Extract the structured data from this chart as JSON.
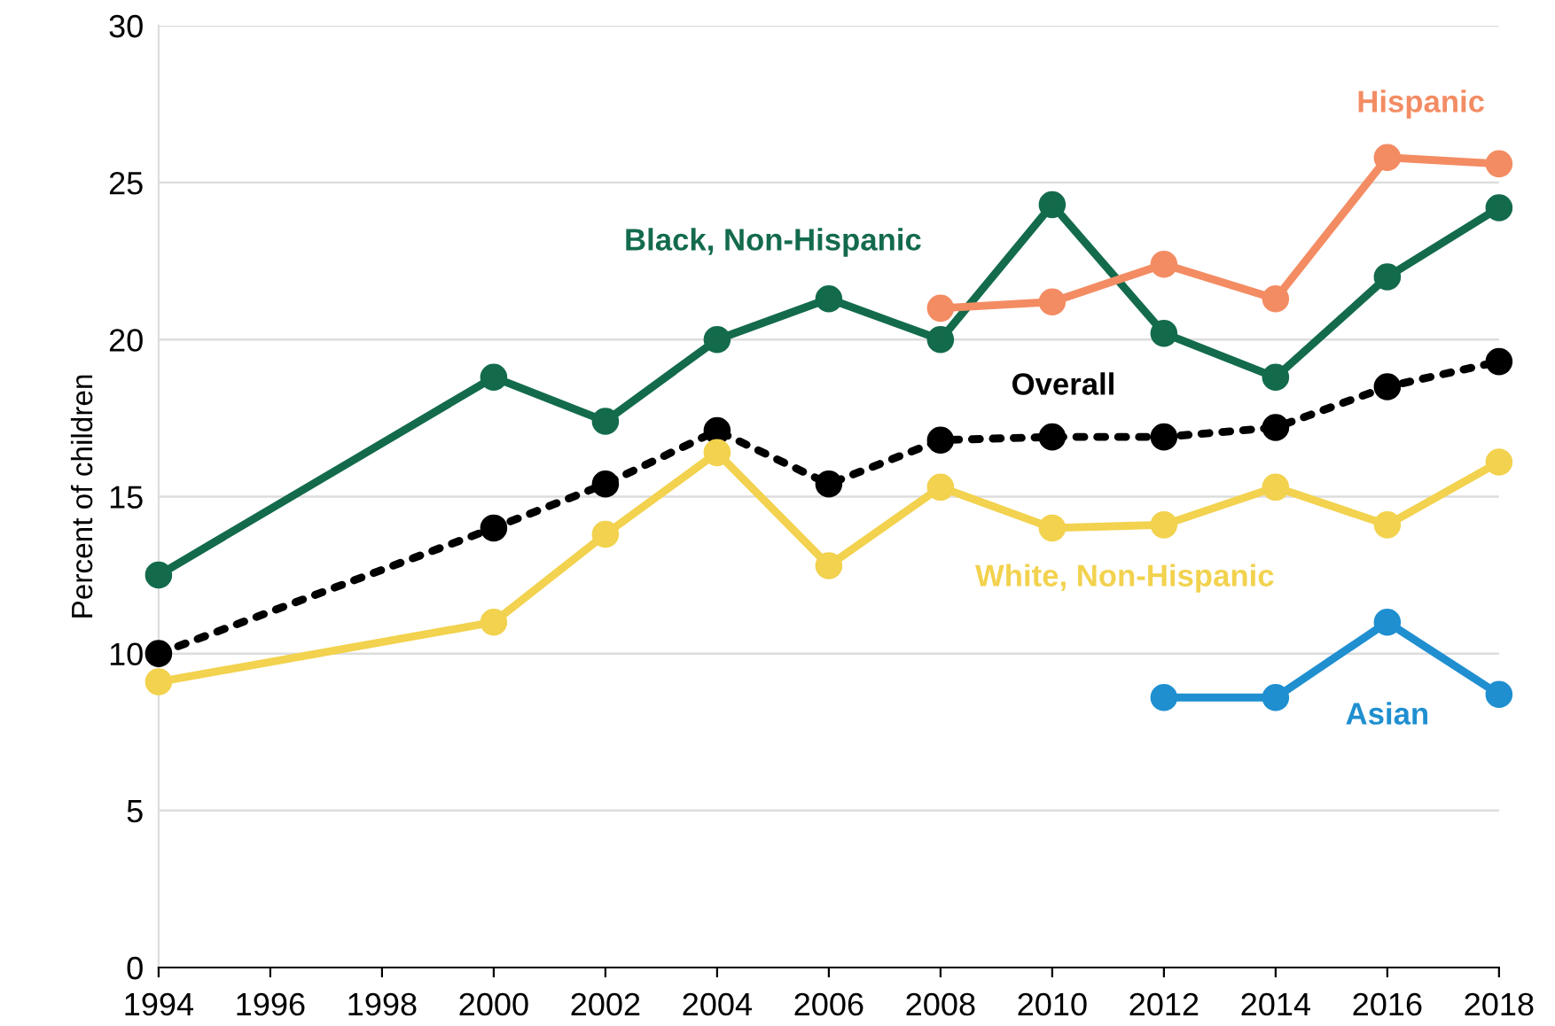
{
  "chart_data": {
    "type": "line",
    "ylabel": "Percent of children",
    "x": [
      1994,
      2000,
      2002,
      2004,
      2006,
      2008,
      2010,
      2012,
      2014,
      2016,
      2018
    ],
    "series": [
      {
        "name": "Black, Non-Hispanic",
        "color": "#136b4c",
        "values": [
          12.5,
          18.8,
          17.4,
          20.0,
          21.3,
          20.0,
          24.3,
          20.2,
          18.8,
          22.0,
          24.2
        ]
      },
      {
        "name": "Hispanic",
        "color": "#f38c63",
        "values": [
          null,
          null,
          null,
          null,
          null,
          21.0,
          21.2,
          22.4,
          21.3,
          25.8,
          25.6
        ]
      },
      {
        "name": "Overall",
        "color": "#000000",
        "line_style": "dotted",
        "values": [
          10.0,
          14.0,
          15.4,
          17.1,
          15.4,
          16.8,
          16.9,
          16.9,
          17.2,
          18.5,
          19.3
        ]
      },
      {
        "name": "White, Non-Hispanic",
        "color": "#f2d24e",
        "values": [
          9.1,
          11.0,
          13.8,
          16.4,
          12.8,
          15.3,
          14.0,
          14.1,
          15.3,
          14.1,
          16.1
        ]
      },
      {
        "name": "Asian",
        "color": "#1f8fd0",
        "values": [
          null,
          null,
          null,
          null,
          null,
          null,
          null,
          8.6,
          8.6,
          11.0,
          8.7
        ]
      }
    ],
    "xlim": [
      1994,
      2018
    ],
    "xticks": [
      1994,
      1996,
      1998,
      2000,
      2002,
      2004,
      2006,
      2008,
      2010,
      2012,
      2014,
      2016,
      2018
    ],
    "ylim": [
      0,
      30
    ],
    "yticks": [
      0,
      5,
      10,
      15,
      20,
      25,
      30
    ],
    "grid": "y",
    "legend": false,
    "marker": "circle",
    "line_style": "solid"
  }
}
